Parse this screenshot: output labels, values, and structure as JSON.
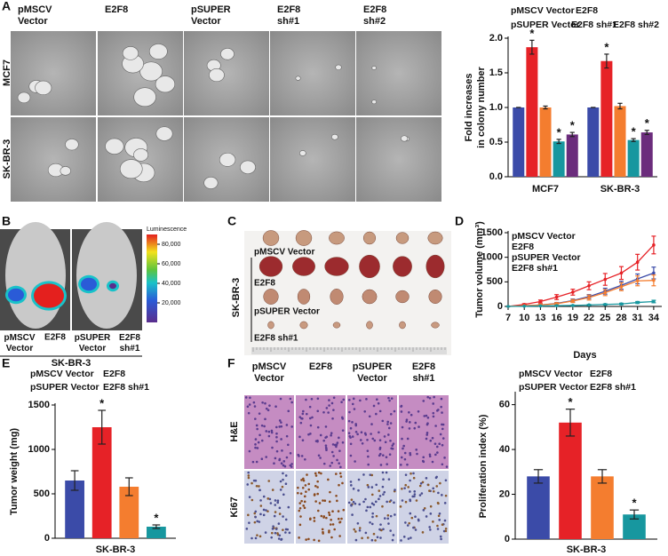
{
  "chart_data": [
    {
      "type": "bar",
      "ylabel": [
        "Fold increases",
        "in colony number"
      ],
      "categories": [
        "MCF7",
        "SK-BR-3"
      ],
      "series": [
        {
          "name": "pMSCV Vector",
          "color": "#3b4ba8",
          "values": [
            1.0,
            1.0
          ],
          "errors": [
            0,
            0
          ]
        },
        {
          "name": "E2F8",
          "color": "#e62227",
          "values": [
            1.87,
            1.67
          ],
          "errors": [
            0.1,
            0.1
          ],
          "significance": [
            "*",
            "*"
          ]
        },
        {
          "name": "pSUPER Vector",
          "color": "#f47d2f",
          "values": [
            1.0,
            1.02
          ],
          "errors": [
            0.02,
            0.04
          ]
        },
        {
          "name": "E2F8 sh#1",
          "color": "#17979f",
          "values": [
            0.51,
            0.53
          ],
          "errors": [
            0.03,
            0.02
          ],
          "significance": [
            "*",
            "*"
          ]
        },
        {
          "name": "E2F8 sh#2",
          "color": "#6b2c7c",
          "values": [
            0.61,
            0.64
          ],
          "errors": [
            0.03,
            0.03
          ],
          "significance": [
            "*",
            "*"
          ]
        }
      ],
      "ylim": [
        0,
        2.0
      ],
      "yticks": [
        {
          "value": 0,
          "label": "0.0"
        },
        0.5,
        {
          "value": 1,
          "label": "1.0"
        },
        1.5,
        {
          "value": 2,
          "label": "2.0"
        }
      ]
    },
    {
      "type": "line",
      "xlabel": "Days",
      "ylabel": "Tumor volume (mm³)",
      "x": [
        7,
        10,
        13,
        16,
        19,
        22,
        25,
        28,
        31,
        34
      ],
      "xlim": [
        7,
        35.5
      ],
      "xticks": [
        7,
        10,
        13,
        16,
        19,
        22,
        25,
        28,
        31,
        34
      ],
      "ylim": [
        0,
        1500
      ],
      "yticks": [
        0,
        500,
        1000,
        1500
      ],
      "series": [
        {
          "name": "pMSCV Vector",
          "color": "#3b4ba8",
          "values": [
            0,
            15,
            30,
            60,
            120,
            200,
            310,
            430,
            560,
            680
          ],
          "errors": [
            0,
            8,
            15,
            20,
            30,
            40,
            60,
            80,
            100,
            120
          ]
        },
        {
          "name": "E2F8",
          "color": "#e62227",
          "values": [
            0,
            40,
            100,
            190,
            290,
            420,
            550,
            680,
            900,
            1250
          ],
          "errors": [
            0,
            15,
            30,
            50,
            60,
            80,
            120,
            130,
            160,
            180
          ]
        },
        {
          "name": "pSUPER Vector",
          "color": "#f47d2f",
          "values": [
            0,
            15,
            30,
            55,
            110,
            180,
            280,
            400,
            520,
            530
          ],
          "errors": [
            0,
            8,
            15,
            20,
            30,
            50,
            60,
            80,
            100,
            110
          ]
        },
        {
          "name": "E2F8 sh#1",
          "color": "#17979f",
          "values": [
            0,
            5,
            10,
            15,
            20,
            30,
            40,
            50,
            80,
            100
          ],
          "errors": [
            0,
            3,
            5,
            5,
            8,
            10,
            12,
            15,
            20,
            25
          ]
        }
      ]
    },
    {
      "type": "bar",
      "ylabel": "Tumor weight (mg)",
      "categories": [
        "SK-BR-3"
      ],
      "series": [
        {
          "name": "pMSCV Vector",
          "color": "#3b4ba8",
          "values": [
            650
          ],
          "errors": [
            110
          ]
        },
        {
          "name": "E2F8",
          "color": "#e62227",
          "values": [
            1250
          ],
          "errors": [
            190
          ],
          "significance": [
            "*"
          ]
        },
        {
          "name": "pSUPER Vector",
          "color": "#f47d2f",
          "values": [
            580
          ],
          "errors": [
            100
          ]
        },
        {
          "name": "E2F8 sh#1",
          "color": "#17979f",
          "values": [
            130
          ],
          "errors": [
            20
          ],
          "significance": [
            "*"
          ]
        }
      ],
      "ylim": [
        0,
        1500
      ],
      "yticks": [
        0,
        500,
        1000,
        1500
      ]
    },
    {
      "type": "bar",
      "ylabel": "Proliferation index (%)",
      "categories": [
        "SK-BR-3"
      ],
      "series": [
        {
          "name": "pMSCV Vector",
          "color": "#3b4ba8",
          "values": [
            28
          ],
          "errors": [
            3
          ]
        },
        {
          "name": "E2F8",
          "color": "#e62227",
          "values": [
            52
          ],
          "errors": [
            6
          ],
          "significance": [
            "*"
          ]
        },
        {
          "name": "pSUPER Vector",
          "color": "#f47d2f",
          "values": [
            28
          ],
          "errors": [
            3
          ]
        },
        {
          "name": "E2F8 sh#1",
          "color": "#17979f",
          "values": [
            11
          ],
          "errors": [
            2
          ],
          "significance": [
            "*"
          ]
        }
      ],
      "ylim": [
        0,
        65
      ],
      "yticks": [
        0,
        20,
        40,
        60
      ]
    }
  ],
  "panels": {
    "A": {
      "letter": "A",
      "columns": [
        "pMSCV Vector",
        "E2F8",
        "pSUPER Vector",
        "E2F8 sh#1",
        "E2F8 sh#2"
      ],
      "rows": [
        "MCF7",
        "SK-BR-3"
      ]
    },
    "B": {
      "letter": "B",
      "labels": [
        "pMSCV Vector",
        "E2F8",
        "pSUPER Vector",
        "E2F8 sh#1"
      ],
      "group": "SK-BR-3",
      "colorbar": {
        "label": "Luminescence",
        "lim": [
          0,
          90000
        ],
        "ticks": [
          {
            "value": 20000,
            "label": "20,000"
          },
          {
            "value": 40000,
            "label": "40,000"
          },
          {
            "value": 60000,
            "label": "60,000"
          },
          {
            "value": 80000,
            "label": "80,000"
          }
        ]
      }
    },
    "C": {
      "letter": "C",
      "group": "SK-BR-3",
      "rows": [
        "pMSCV Vector",
        "E2F8",
        "pSUPER Vector",
        "E2F8 sh#1"
      ]
    },
    "D": {
      "letter": "D"
    },
    "E": {
      "letter": "E"
    },
    "F": {
      "letter": "F",
      "columns": [
        "pMSCV Vector",
        "E2F8",
        "pSUPER Vector",
        "E2F8 sh#1"
      ],
      "rows": [
        "H&E",
        "Ki67"
      ]
    }
  }
}
